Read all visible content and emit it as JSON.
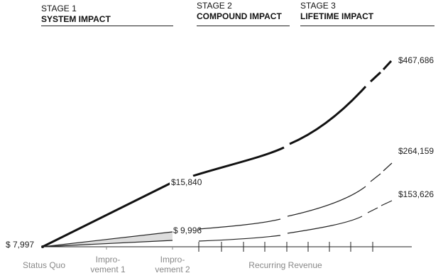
{
  "stages": [
    {
      "label": "STAGE 1",
      "title": "SYSTEM IMPACT"
    },
    {
      "label": "STAGE 2",
      "title": "COMPOUND IMPACT"
    },
    {
      "label": "STAGE 3",
      "title": "LIFETIME IMPACT"
    }
  ],
  "value_labels": {
    "start": "$ 7,997",
    "system_top": "$15,840",
    "system_mid": "$ 9,996",
    "lifetime_top": "$467,686",
    "lifetime_mid": "$264,159",
    "lifetime_low": "$153,626"
  },
  "axis_labels": {
    "status_quo": "Status Quo",
    "improvement_1": [
      "Impro-",
      "vement 1"
    ],
    "improvement_2": [
      "Impro-",
      "vement 2"
    ],
    "recurring": "Recurring Revenue"
  }
}
